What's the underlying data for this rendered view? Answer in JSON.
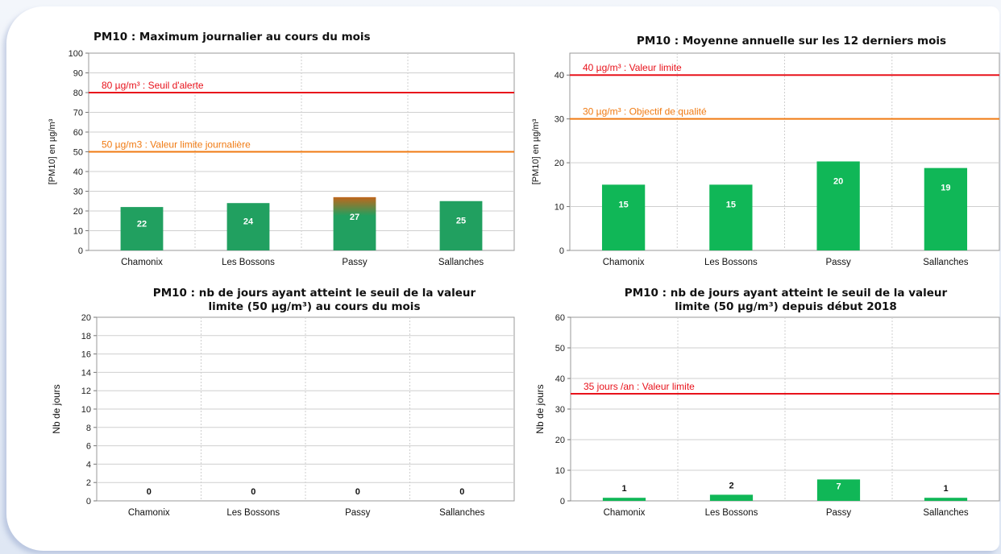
{
  "chart_data": [
    {
      "type": "bar",
      "title": "PM10 : Maximum journalier au cours du mois",
      "ylabel": "[PM10] en µg/m³",
      "categories": [
        "Chamonix",
        "Les Bossons",
        "Passy",
        "Sallanches"
      ],
      "values": [
        22,
        24,
        27,
        25
      ],
      "value_labels": [
        "22",
        "24",
        "27",
        "25"
      ],
      "ylim": [
        0,
        100
      ],
      "ytick_step": 10,
      "grid": true,
      "bar_color": "#21a060",
      "bar_tip_color": "#c0661c",
      "reference_lines": [
        {
          "value": 80,
          "label": "80 µg/m³ : Seuil d'alerte",
          "color": "#e8121b"
        },
        {
          "value": 50,
          "label": "50 µg/m3 : Valeur limite journalière",
          "color": "#f07a12"
        }
      ]
    },
    {
      "type": "bar",
      "title": "PM10 : Moyenne annuelle sur les 12 derniers mois",
      "ylabel": "[PM10] en µg/m³",
      "categories": [
        "Chamonix",
        "Les Bossons",
        "Passy",
        "Sallanches"
      ],
      "values": [
        15,
        15,
        20.3,
        18.8
      ],
      "value_labels": [
        "15",
        "15",
        "20",
        "19"
      ],
      "ylim": [
        0,
        45
      ],
      "ytick_step": 10,
      "grid": true,
      "bar_color": "#10b757",
      "reference_lines": [
        {
          "value": 40,
          "label": "40 µg/m³ : Valeur limite",
          "color": "#e8121b"
        },
        {
          "value": 30,
          "label": "30 µg/m³ : Objectif de qualité",
          "color": "#f07a12"
        }
      ]
    },
    {
      "type": "bar",
      "title": "PM10 : nb de jours ayant atteint le seuil de la valeur\nlimite (50 µg/m³) au cours du mois",
      "ylabel": "Nb de jours",
      "categories": [
        "Chamonix",
        "Les Bossons",
        "Passy",
        "Sallanches"
      ],
      "values": [
        0,
        0,
        0,
        0
      ],
      "value_labels": [
        "0",
        "0",
        "0",
        "0"
      ],
      "ylim": [
        0,
        20
      ],
      "ytick_step": 2,
      "grid": true,
      "bar_color": "#10b757",
      "reference_lines": []
    },
    {
      "type": "bar",
      "title": "PM10 : nb de jours ayant atteint le seuil de la valeur\nlimite (50 µg/m³) depuis début 2018",
      "ylabel": "Nb de jours",
      "categories": [
        "Chamonix",
        "Les Bossons",
        "Passy",
        "Sallanches"
      ],
      "values": [
        1,
        2,
        7,
        1
      ],
      "value_labels": [
        "1",
        "2",
        "7",
        "1"
      ],
      "ylim": [
        0,
        60
      ],
      "ytick_step": 10,
      "grid": true,
      "bar_color": "#10b757",
      "reference_lines": [
        {
          "value": 35,
          "label": "35 jours /an  : Valeur limite",
          "color": "#e8121b"
        }
      ]
    }
  ]
}
